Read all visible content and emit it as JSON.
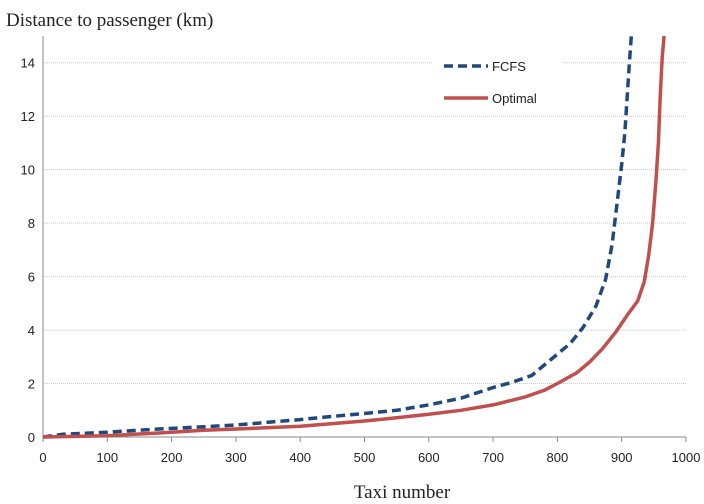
{
  "chart_data": {
    "type": "line",
    "title": "",
    "ylabel": "Distance to passenger (km)",
    "xlabel": "Taxi number",
    "xlim": [
      0,
      1000
    ],
    "ylim": [
      0,
      15
    ],
    "xticks": [
      0,
      100,
      200,
      300,
      400,
      500,
      600,
      700,
      800,
      900,
      1000
    ],
    "yticks": [
      0,
      2,
      4,
      6,
      8,
      10,
      12,
      14
    ],
    "grid": "horizontal",
    "legend_position": "top-right",
    "series": [
      {
        "name": "FCFS",
        "color": "#1f497d",
        "style": "dashed",
        "points": [
          [
            0,
            0
          ],
          [
            30,
            0.1
          ],
          [
            100,
            0.18
          ],
          [
            180,
            0.3
          ],
          [
            250,
            0.38
          ],
          [
            300,
            0.45
          ],
          [
            350,
            0.55
          ],
          [
            400,
            0.65
          ],
          [
            450,
            0.77
          ],
          [
            500,
            0.88
          ],
          [
            550,
            1.0
          ],
          [
            600,
            1.2
          ],
          [
            650,
            1.45
          ],
          [
            700,
            1.85
          ],
          [
            730,
            2.05
          ],
          [
            760,
            2.3
          ],
          [
            775,
            2.6
          ],
          [
            800,
            3.1
          ],
          [
            820,
            3.5
          ],
          [
            840,
            4.1
          ],
          [
            860,
            4.9
          ],
          [
            875,
            5.9
          ],
          [
            885,
            7.2
          ],
          [
            892,
            8.6
          ],
          [
            900,
            10.2
          ],
          [
            905,
            11.4
          ],
          [
            908,
            12.5
          ],
          [
            912,
            14.0
          ],
          [
            915,
            15.0
          ]
        ]
      },
      {
        "name": "Optimal",
        "color": "#c0504d",
        "style": "solid",
        "points": [
          [
            0,
            0
          ],
          [
            100,
            0.05
          ],
          [
            180,
            0.15
          ],
          [
            250,
            0.25
          ],
          [
            300,
            0.3
          ],
          [
            400,
            0.4
          ],
          [
            450,
            0.5
          ],
          [
            500,
            0.6
          ],
          [
            550,
            0.72
          ],
          [
            600,
            0.85
          ],
          [
            650,
            1.0
          ],
          [
            700,
            1.2
          ],
          [
            750,
            1.5
          ],
          [
            780,
            1.75
          ],
          [
            800,
            2.0
          ],
          [
            830,
            2.4
          ],
          [
            850,
            2.8
          ],
          [
            870,
            3.3
          ],
          [
            890,
            3.9
          ],
          [
            910,
            4.6
          ],
          [
            925,
            5.1
          ],
          [
            935,
            5.8
          ],
          [
            942,
            6.8
          ],
          [
            948,
            8.0
          ],
          [
            953,
            9.5
          ],
          [
            957,
            11.0
          ],
          [
            960,
            12.8
          ],
          [
            963,
            14.2
          ],
          [
            966,
            15.0
          ]
        ]
      }
    ]
  }
}
